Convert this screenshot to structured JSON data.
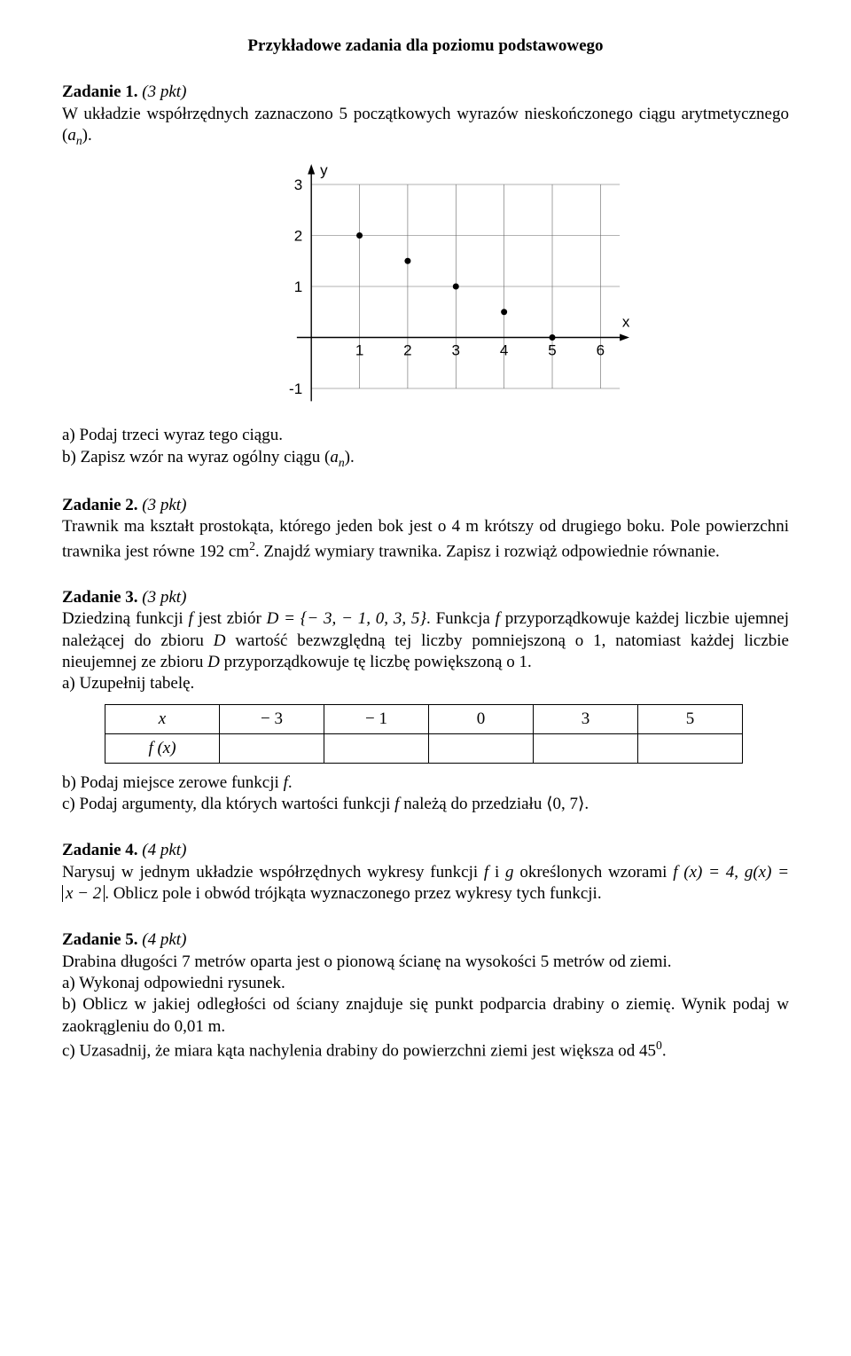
{
  "title": "Przykładowe zadania dla poziomu podstawowego",
  "task1": {
    "heading_num": "Zadanie 1.",
    "pkt": "(3 pkt)",
    "intro_a": "W układzie współrzędnych zaznaczono 5 początkowych wyrazów nieskończonego ciągu arytmetycznego ",
    "seq_left": "(",
    "seq_var": "a",
    "seq_sub": "n",
    "seq_right": ").",
    "a_label": "a) Podaj trzeci wyraz tego ciągu.",
    "b_prefix": "b) Zapisz wzór na wyraz ogólny ciągu ",
    "b_seq_left": "(",
    "b_seq_var": "a",
    "b_seq_sub": "n",
    "b_seq_right": ").",
    "chart": {
      "type": "scatter",
      "x_label": "x",
      "y_label": "y",
      "x_ticks": [
        1,
        2,
        3,
        4,
        5,
        6
      ],
      "y_ticks": [
        -1,
        1,
        2,
        3
      ],
      "xlim": [
        -0.5,
        6.6
      ],
      "ylim": [
        -1.4,
        3.4
      ],
      "points": [
        {
          "x": 1,
          "y": 2.0
        },
        {
          "x": 2,
          "y": 1.5
        },
        {
          "x": 3,
          "y": 1.0
        },
        {
          "x": 4,
          "y": 0.5
        },
        {
          "x": 5,
          "y": 0.0
        }
      ],
      "point_color": "#000000",
      "point_radius": 3.5,
      "grid_color": "#666666",
      "grid_width": 0.6,
      "axis_color": "#000000",
      "axis_width": 1.4,
      "background": "#ffffff",
      "label_font": "Arial",
      "label_fontsize": 17
    }
  },
  "task2": {
    "heading_num": "Zadanie 2.",
    "pkt": "(3 pkt)",
    "body": "Trawnik ma kształt prostokąta, którego jeden bok jest o 4 m krótszy od drugiego boku. Pole powierzchni trawnika jest równe 192 cm",
    "sup": "2",
    "body2": ". Znajdź wymiary trawnika. Zapisz i rozwiąż odpowiednie równanie."
  },
  "task3": {
    "heading_num": "Zadanie 3.",
    "pkt": "(3 pkt)",
    "p1_a": "Dziedziną funkcji ",
    "f": "f",
    "p1_b": " jest zbiór ",
    "D_eq": "D = {− 3, − 1, 0, 3, 5}",
    "p1_c": ". Funkcja ",
    "p1_d": " przyporządkowuje każdej liczbie ujemnej należącej do zbioru ",
    "D": "D",
    "p1_e": " wartość bezwzględną tej liczby pomniejszoną o 1, natomiast każdej liczbie nieujemnej ze zbioru ",
    "p1_f": " przyporządkowuje tę liczbę powiększoną o 1.",
    "a_label": "a) Uzupełnij tabelę.",
    "table": {
      "row1_head": "x",
      "row1_vals": [
        "− 3",
        "− 1",
        "0",
        "3",
        "5"
      ],
      "row2_head": "f (x)",
      "row2_vals": [
        "",
        "",
        "",
        "",
        ""
      ]
    },
    "b_label_a": "b) Podaj miejsce zerowe funkcji ",
    "b_label_b": ".",
    "c_label_a": "c) Podaj argumenty, dla których wartości funkcji ",
    "c_label_b": " należą do przedziału ",
    "interval": "0, 7",
    "c_label_c": "."
  },
  "task4": {
    "heading_num": "Zadanie 4.",
    "pkt": "(4 pkt)",
    "p_a": "Narysuj w jednym układzie współrzędnych wykresy funkcji ",
    "f": "f",
    "and": " i ",
    "g": "g",
    "p_b": " określonych wzorami ",
    "eq_f_lhs": "f (x) = 4",
    "comma": ", ",
    "eq_g_lhs": "g(x) = ",
    "eq_g_abs_inner": "x − 2",
    "p_c": ". Oblicz pole i obwód trójkąta wyznaczonego przez wykresy tych funkcji."
  },
  "task5": {
    "heading_num": "Zadanie 5.",
    "pkt": "(4 pkt)",
    "p1": "Drabina długości 7 metrów oparta jest o pionową ścianę na wysokości 5 metrów od ziemi.",
    "a": "a) Wykonaj odpowiedni rysunek.",
    "b": "b) Oblicz w jakiej odległości od ściany znajduje się punkt podparcia drabiny o ziemię. Wynik podaj w zaokrągleniu do 0,01 m.",
    "c_a": "c) Uzasadnij, że miara kąta nachylenia drabiny do powierzchni ziemi jest większa od ",
    "angle_val": "45",
    "angle_sup": "0",
    "c_b": "."
  }
}
